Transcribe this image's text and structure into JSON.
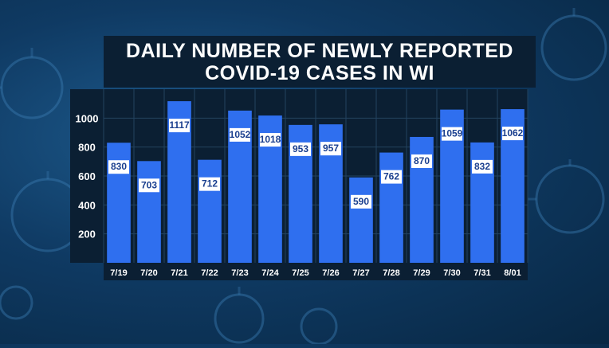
{
  "title": {
    "line1": "DAILY NUMBER OF NEWLY REPORTED",
    "line2": "COVID-19 CASES IN WI"
  },
  "colors": {
    "bar": "#2f6fef",
    "plot_bg": "#0b1f33",
    "axis_bg": "#0b1f33",
    "grid": "#23435f",
    "label_bg": "#ffffff",
    "label_text": "#1a3f8f",
    "tick_text": "#ffffff"
  },
  "chart_data": {
    "type": "bar",
    "title": "DAILY NUMBER OF NEWLY REPORTED COVID-19 CASES IN WI",
    "xlabel": "",
    "ylabel": "",
    "categories": [
      "7/19",
      "7/20",
      "7/21",
      "7/22",
      "7/23",
      "7/24",
      "7/25",
      "7/26",
      "7/27",
      "7/28",
      "7/29",
      "7/30",
      "7/31",
      "8/01"
    ],
    "values": [
      830,
      703,
      1117,
      712,
      1052,
      1018,
      953,
      957,
      590,
      762,
      870,
      1059,
      832,
      1062
    ],
    "yticks": [
      "200",
      "400",
      "600",
      "800",
      "1000"
    ],
    "ylim": [
      0,
      1200
    ],
    "grid": true,
    "legend": "none"
  }
}
